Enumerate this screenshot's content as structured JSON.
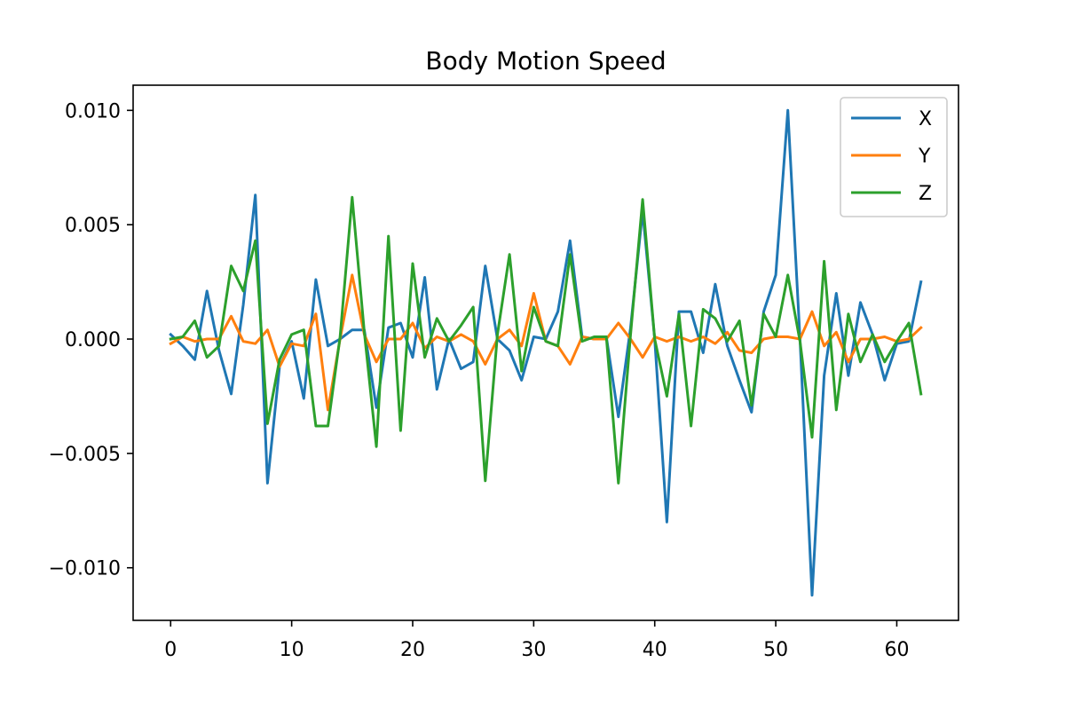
{
  "chart_data": {
    "type": "line",
    "title": "Body Motion Speed",
    "xlabel": "",
    "ylabel": "",
    "xlim": [
      -3.1,
      65.1
    ],
    "ylim": [
      -0.0123,
      0.0111
    ],
    "xticks": [
      0,
      10,
      20,
      30,
      40,
      50,
      60
    ],
    "xtick_labels": [
      "0",
      "10",
      "20",
      "30",
      "40",
      "50",
      "60"
    ],
    "yticks": [
      -0.01,
      -0.005,
      0.0,
      0.005,
      0.01
    ],
    "ytick_labels": [
      "−0.010",
      "−0.005",
      "0.000",
      "0.005",
      "0.010"
    ],
    "grid": false,
    "legend_position": "top-right",
    "x": [
      0,
      1,
      2,
      3,
      4,
      5,
      6,
      7,
      8,
      9,
      10,
      11,
      12,
      13,
      14,
      15,
      16,
      17,
      18,
      19,
      20,
      21,
      22,
      23,
      24,
      25,
      26,
      27,
      28,
      29,
      30,
      31,
      32,
      33,
      34,
      35,
      36,
      37,
      38,
      39,
      40,
      41,
      42,
      43,
      44,
      45,
      46,
      47,
      48,
      49,
      50,
      51,
      52,
      53,
      54,
      55,
      56,
      57,
      58,
      59,
      60,
      61,
      62
    ],
    "series": [
      {
        "name": "X",
        "color": "#1f77b4",
        "values": [
          0.0002,
          -0.0003,
          -0.0009,
          0.0021,
          -0.0005,
          -0.0024,
          0.0015,
          0.0063,
          -0.0063,
          -0.0012,
          -0.0001,
          -0.0026,
          0.0026,
          -0.0003,
          0.0,
          0.0004,
          0.0004,
          -0.003,
          0.0005,
          0.0007,
          -0.0008,
          0.0027,
          -0.0022,
          0.0,
          -0.0013,
          -0.001,
          0.0032,
          0.0,
          -0.0005,
          -0.0018,
          0.0001,
          0.0,
          0.0012,
          0.0043,
          0.0001,
          0.0,
          0.0001,
          -0.0034,
          0.0005,
          0.0056,
          0.0,
          -0.008,
          0.0012,
          0.0012,
          -0.0006,
          0.0024,
          -0.0003,
          -0.0018,
          -0.0032,
          0.0012,
          0.0028,
          0.01,
          0.0,
          -0.0112,
          -0.0016,
          0.002,
          -0.0016,
          0.0016,
          0.0002,
          -0.0018,
          -0.0002,
          -0.0001,
          0.0025
        ]
      },
      {
        "name": "Y",
        "color": "#ff7f0e",
        "values": [
          -0.0002,
          0.0001,
          -0.0001,
          0.0,
          0.0,
          0.001,
          -0.0001,
          -0.0002,
          0.0004,
          -0.0012,
          -0.0002,
          -0.0003,
          0.0011,
          -0.0031,
          0.0,
          0.0028,
          0.0002,
          -0.001,
          0.0,
          0.0,
          0.0007,
          -0.0004,
          0.0001,
          -0.0001,
          0.0002,
          -0.0001,
          -0.0011,
          0.0,
          0.0004,
          -0.0003,
          0.002,
          -0.0001,
          -0.0003,
          -0.0011,
          0.0001,
          0.0,
          0.0,
          0.0007,
          0.0,
          -0.0008,
          0.0001,
          -0.0001,
          0.0001,
          -0.0001,
          0.0001,
          -0.0002,
          0.0003,
          -0.0005,
          -0.0006,
          0.0,
          0.0001,
          0.0001,
          0.0,
          0.0012,
          -0.0003,
          0.0003,
          -0.001,
          0.0,
          0.0,
          0.0001,
          -0.0001,
          0.0,
          0.0005
        ]
      },
      {
        "name": "Z",
        "color": "#2ca02c",
        "values": [
          0.0,
          0.0001,
          0.0008,
          -0.0008,
          -0.0003,
          0.0032,
          0.0021,
          0.0043,
          -0.0037,
          -0.0009,
          0.0002,
          0.0004,
          -0.0038,
          -0.0038,
          0.0001,
          0.0062,
          0.0003,
          -0.0047,
          0.0045,
          -0.004,
          0.0033,
          -0.0008,
          0.0009,
          -0.0001,
          0.0006,
          0.0014,
          -0.0062,
          0.0002,
          0.0037,
          -0.0014,
          0.0014,
          -0.0001,
          -0.0003,
          0.0037,
          -0.0001,
          0.0001,
          0.0001,
          -0.0063,
          0.0002,
          0.0061,
          0.0,
          -0.0025,
          0.0011,
          -0.0038,
          0.0013,
          0.0009,
          -0.0001,
          0.0008,
          -0.0029,
          0.0011,
          0.0001,
          0.0028,
          -0.0001,
          -0.0043,
          0.0034,
          -0.0031,
          0.0011,
          -0.001,
          0.0002,
          -0.001,
          -0.0001,
          0.0007,
          -0.0024
        ]
      }
    ]
  }
}
